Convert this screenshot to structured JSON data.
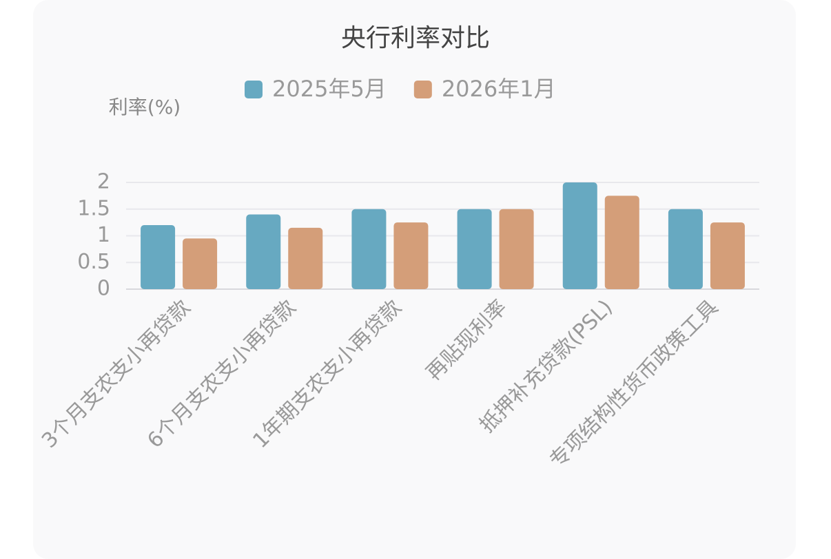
{
  "chart_data": {
    "type": "bar",
    "title": "央行利率对比",
    "y_label": "利率(%)",
    "categories": [
      "3个月支农支小再贷款",
      "6个月支农支小再贷款",
      "1年期支农支小再贷款",
      "再贴现利率",
      "抵押补充贷款(PSL)",
      "专项结构性货币政策工具"
    ],
    "series": [
      {
        "name": "2025年5月",
        "color": "#67a9c1",
        "values": [
          1.2,
          1.4,
          1.5,
          1.5,
          2.0,
          1.5
        ]
      },
      {
        "name": "2026年1月",
        "color": "#d49e79",
        "values": [
          0.95,
          1.15,
          1.25,
          1.5,
          1.75,
          1.25
        ]
      }
    ],
    "ylim": [
      0,
      2
    ],
    "yticks": [
      0,
      0.5,
      1,
      1.5,
      2
    ],
    "grid": true
  }
}
